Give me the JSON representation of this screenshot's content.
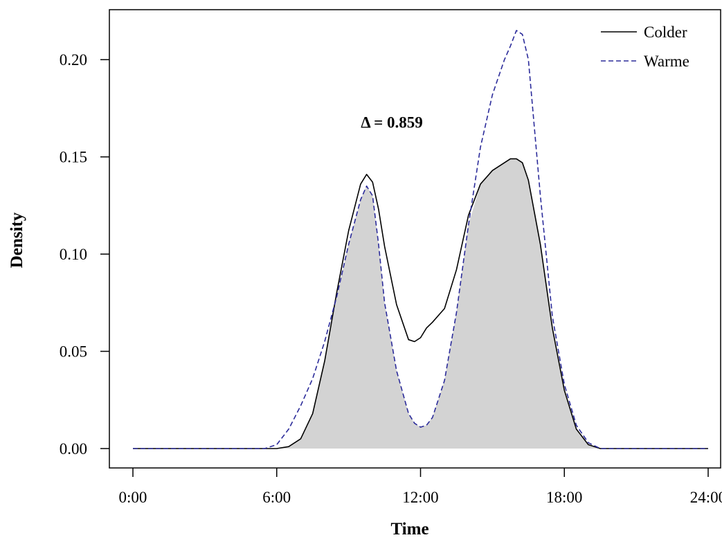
{
  "chart_data": {
    "type": "line",
    "title": "",
    "xlabel": "Time",
    "ylabel": "Density",
    "xlim": [
      0,
      24
    ],
    "ylim": [
      0,
      0.22
    ],
    "x_ticks": [
      0,
      6,
      12,
      18,
      24
    ],
    "x_tick_labels": [
      "0:00",
      "6:00",
      "12:00",
      "18:00",
      "24:00"
    ],
    "y_ticks": [
      0,
      0.05,
      0.1,
      0.15,
      0.2
    ],
    "y_tick_labels": [
      "0.00",
      "0.05",
      "0.10",
      "0.15",
      "0.20"
    ],
    "annotation": "Δ = 0.859",
    "annotation_position": [
      10.8,
      0.165
    ],
    "legend_position": "top-right",
    "overlap_fill_color": "#d3d3d3",
    "grid": false,
    "x": [
      0,
      5.0,
      5.5,
      6.0,
      6.5,
      7.0,
      7.5,
      8.0,
      8.5,
      9.0,
      9.5,
      9.75,
      10.0,
      10.25,
      10.5,
      11.0,
      11.5,
      11.75,
      12.0,
      12.25,
      12.5,
      13.0,
      13.5,
      14.0,
      14.5,
      15.0,
      15.5,
      15.75,
      16.0,
      16.25,
      16.5,
      17.0,
      17.5,
      18.0,
      18.5,
      19.0,
      19.5,
      20.0,
      24
    ],
    "series": [
      {
        "name": "Colder",
        "color": "#000000",
        "dash": "solid",
        "values": [
          0,
          0,
          0,
          0,
          0.001,
          0.005,
          0.018,
          0.045,
          0.08,
          0.112,
          0.136,
          0.141,
          0.137,
          0.123,
          0.104,
          0.074,
          0.056,
          0.055,
          0.057,
          0.062,
          0.065,
          0.072,
          0.092,
          0.12,
          0.136,
          0.143,
          0.147,
          0.149,
          0.149,
          0.147,
          0.138,
          0.105,
          0.062,
          0.03,
          0.01,
          0.002,
          0,
          0,
          0
        ]
      },
      {
        "name": "Warme",
        "color": "#2b2b9a",
        "dash": "dashed",
        "values": [
          0,
          0,
          0,
          0.002,
          0.01,
          0.022,
          0.036,
          0.055,
          0.078,
          0.105,
          0.128,
          0.135,
          0.13,
          0.105,
          0.075,
          0.04,
          0.018,
          0.013,
          0.011,
          0.012,
          0.016,
          0.035,
          0.07,
          0.115,
          0.155,
          0.182,
          0.2,
          0.207,
          0.215,
          0.213,
          0.2,
          0.13,
          0.068,
          0.033,
          0.012,
          0.003,
          0,
          0,
          0
        ]
      }
    ]
  }
}
